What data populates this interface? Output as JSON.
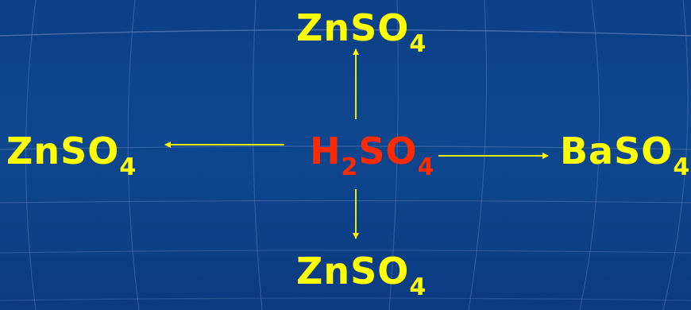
{
  "colors": {
    "background": "#0e478f",
    "grid_line": "#5f7fb8",
    "product_text": "#ffff00",
    "reactant_text": "#ff2a00",
    "arrow": "#ffff00"
  },
  "diagram": {
    "center": {
      "main": "H",
      "sub1": "2",
      "mid": "SO",
      "sub2": "4"
    },
    "top": {
      "main": "ZnSO",
      "sub": "4"
    },
    "left": {
      "main": "ZnSO",
      "sub": "4"
    },
    "right": {
      "main": "BaSO",
      "sub": "4"
    },
    "bottom": {
      "main": "ZnSO",
      "sub": "4"
    }
  }
}
